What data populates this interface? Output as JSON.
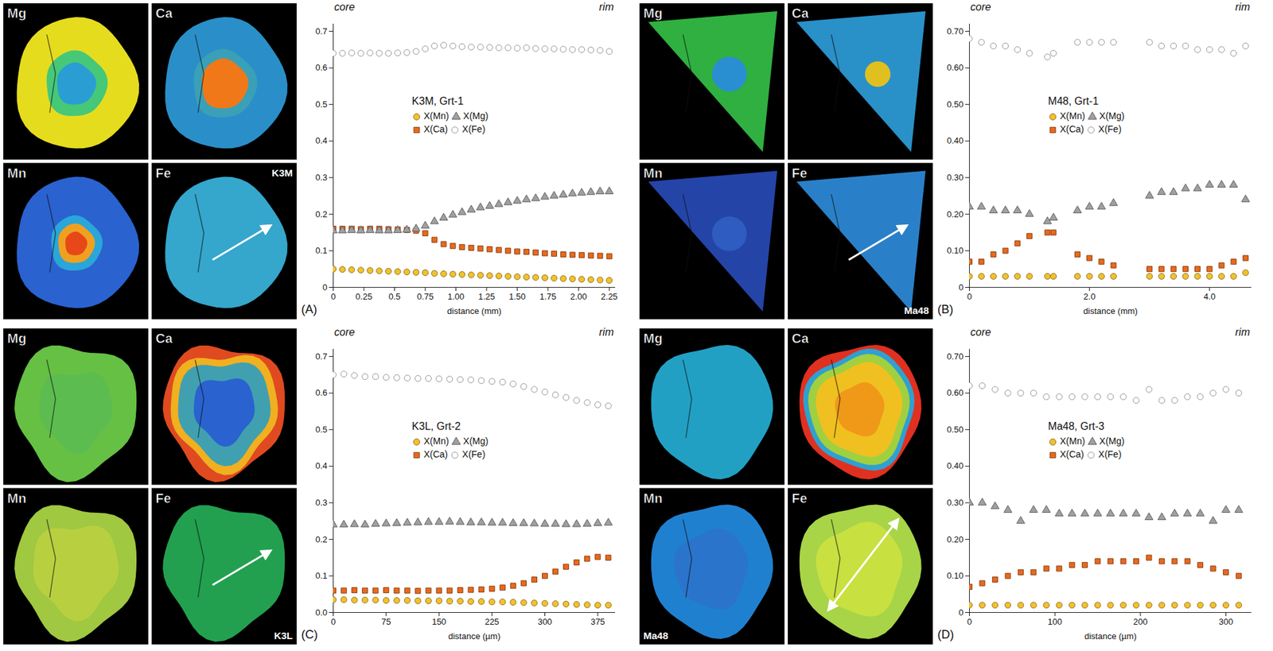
{
  "chart_data": [
    {
      "type": "scatter",
      "panel": "(A)",
      "title": "K3M, Grt-1",
      "annotations": [
        "core",
        "rim"
      ],
      "map_labels": [
        "Mg",
        "Ca",
        "Mn",
        "Fe"
      ],
      "sample_label": "K3M",
      "xlabel": "distance (mm)",
      "legend": "center",
      "x": [
        0,
        0.075,
        0.15,
        0.225,
        0.3,
        0.375,
        0.45,
        0.525,
        0.6,
        0.675,
        0.75,
        0.825,
        0.9,
        0.975,
        1.05,
        1.125,
        1.2,
        1.275,
        1.35,
        1.425,
        1.5,
        1.575,
        1.65,
        1.725,
        1.8,
        1.875,
        1.95,
        2.025,
        2.1,
        2.175,
        2.25
      ],
      "xlim": [
        0,
        2.3
      ],
      "xticks": [
        0,
        0.25,
        0.5,
        0.75,
        {
          "value": 1,
          "label": "1.00"
        },
        1.25,
        {
          "value": 1.5,
          "label": "1.50"
        },
        1.75,
        {
          "value": 2,
          "label": "2.00"
        },
        2.25
      ],
      "ylim": [
        0,
        0.72
      ],
      "yticks": [
        0,
        0.1,
        0.2,
        0.3,
        0.4,
        0.5,
        0.6,
        0.7
      ],
      "series": [
        {
          "name": "X(Mn)",
          "color": "#f2c12e",
          "marker": "circle",
          "values": [
            0.05,
            0.049,
            0.048,
            0.047,
            0.046,
            0.045,
            0.044,
            0.043,
            0.042,
            0.041,
            0.04,
            0.038,
            0.037,
            0.036,
            0.035,
            0.034,
            0.033,
            0.032,
            0.031,
            0.03,
            0.029,
            0.028,
            0.027,
            0.026,
            0.025,
            0.024,
            0.023,
            0.022,
            0.021,
            0.02,
            0.019
          ]
        },
        {
          "name": "X(Mg)",
          "color": "#a0a0a0",
          "marker": "triangle",
          "values": [
            0.155,
            0.155,
            0.156,
            0.155,
            0.156,
            0.155,
            0.155,
            0.156,
            0.157,
            0.16,
            0.168,
            0.18,
            0.19,
            0.198,
            0.205,
            0.212,
            0.218,
            0.222,
            0.227,
            0.232,
            0.236,
            0.24,
            0.243,
            0.247,
            0.25,
            0.253,
            0.256,
            0.258,
            0.26,
            0.262,
            0.262
          ]
        },
        {
          "name": "X(Ca)",
          "color": "#e8691c",
          "marker": "square",
          "values": [
            0.16,
            0.16,
            0.16,
            0.159,
            0.16,
            0.16,
            0.159,
            0.158,
            0.157,
            0.155,
            0.148,
            0.13,
            0.118,
            0.113,
            0.11,
            0.108,
            0.106,
            0.104,
            0.102,
            0.1,
            0.098,
            0.097,
            0.095,
            0.093,
            0.092,
            0.09,
            0.089,
            0.088,
            0.087,
            0.086,
            0.085
          ]
        },
        {
          "name": "X(Fe)",
          "color": "#ffffff",
          "marker": "circle",
          "values": [
            0.64,
            0.64,
            0.641,
            0.64,
            0.641,
            0.64,
            0.64,
            0.641,
            0.642,
            0.645,
            0.652,
            0.66,
            0.662,
            0.66,
            0.658,
            0.657,
            0.657,
            0.656,
            0.655,
            0.655,
            0.654,
            0.655,
            0.653,
            0.652,
            0.652,
            0.651,
            0.65,
            0.65,
            0.649,
            0.648,
            0.645
          ]
        }
      ]
    },
    {
      "type": "scatter",
      "panel": "(B)",
      "title": "M48, Grt-1",
      "annotations": [
        "core",
        "rim"
      ],
      "map_labels": [
        "Mg",
        "Ca",
        "Mn",
        "Fe"
      ],
      "sample_label": "Ma48",
      "xlabel": "distance (mm)",
      "legend": "center",
      "x": [
        0,
        0.2,
        0.4,
        0.6,
        0.8,
        1.0,
        1.3,
        1.4,
        1.8,
        2.0,
        2.2,
        2.4,
        3.0,
        3.2,
        3.4,
        3.6,
        3.8,
        4.0,
        4.2,
        4.4,
        4.6
      ],
      "xlim": [
        0,
        4.7
      ],
      "xticks": [
        0,
        {
          "value": 2,
          "label": "2.0"
        },
        {
          "value": 4,
          "label": "4.0"
        }
      ],
      "ylim": [
        0,
        0.72
      ],
      "yticks": [
        0,
        {
          "value": 0.1,
          "label": "0.10"
        },
        {
          "value": 0.2,
          "label": "0.20"
        },
        {
          "value": 0.3,
          "label": "0.30"
        },
        {
          "value": 0.4,
          "label": "0.40"
        },
        {
          "value": 0.5,
          "label": "0.50"
        },
        {
          "value": 0.6,
          "label": "0.60"
        },
        {
          "value": 0.7,
          "label": "0.70"
        }
      ],
      "series": [
        {
          "name": "X(Mn)",
          "color": "#f2c12e",
          "marker": "circle",
          "values": [
            0.03,
            0.03,
            0.03,
            0.03,
            0.03,
            0.03,
            0.03,
            0.03,
            0.03,
            0.03,
            0.03,
            0.03,
            0.03,
            0.03,
            0.03,
            0.03,
            0.03,
            0.03,
            0.03,
            0.03,
            0.04
          ]
        },
        {
          "name": "X(Mg)",
          "color": "#a0a0a0",
          "marker": "triangle",
          "values": [
            0.22,
            0.22,
            0.21,
            0.21,
            0.21,
            0.2,
            0.18,
            0.19,
            0.21,
            0.22,
            0.22,
            0.23,
            0.25,
            0.26,
            0.26,
            0.27,
            0.27,
            0.28,
            0.28,
            0.28,
            0.24
          ]
        },
        {
          "name": "X(Ca)",
          "color": "#e8691c",
          "marker": "square",
          "values": [
            0.07,
            0.07,
            0.09,
            0.1,
            0.12,
            0.14,
            0.15,
            0.15,
            0.09,
            0.08,
            0.07,
            0.06,
            0.05,
            0.05,
            0.05,
            0.05,
            0.05,
            0.05,
            0.06,
            0.07,
            0.08
          ]
        },
        {
          "name": "X(Fe)",
          "color": "#ffffff",
          "marker": "circle",
          "values": [
            0.68,
            0.67,
            0.66,
            0.66,
            0.65,
            0.64,
            0.63,
            0.64,
            0.67,
            0.67,
            0.67,
            0.67,
            0.67,
            0.66,
            0.66,
            0.66,
            0.65,
            0.65,
            0.65,
            0.64,
            0.66
          ]
        }
      ]
    },
    {
      "type": "scatter",
      "panel": "(C)",
      "title": "K3L, Grt-2",
      "annotations": [
        "core",
        "rim"
      ],
      "map_labels": [
        "Mg",
        "Ca",
        "Mn",
        "Fe"
      ],
      "sample_label": "K3L",
      "xlabel": "distance (µm)",
      "legend": "center",
      "x": [
        0,
        15,
        30,
        45,
        60,
        75,
        90,
        105,
        120,
        135,
        150,
        165,
        180,
        195,
        210,
        225,
        240,
        255,
        270,
        285,
        300,
        315,
        330,
        345,
        360,
        375,
        390
      ],
      "xlim": [
        0,
        400
      ],
      "xticks": [
        0,
        75,
        150,
        225,
        300,
        375
      ],
      "ylim": [
        0,
        0.72
      ],
      "yticks": [
        {
          "value": 0,
          "label": "0.0"
        },
        0.1,
        0.2,
        0.3,
        0.4,
        0.5,
        0.6,
        0.7
      ],
      "series": [
        {
          "name": "X(Mn)",
          "color": "#f2c12e",
          "marker": "circle",
          "values": [
            0.035,
            0.035,
            0.034,
            0.034,
            0.034,
            0.033,
            0.033,
            0.033,
            0.032,
            0.032,
            0.032,
            0.031,
            0.031,
            0.03,
            0.03,
            0.029,
            0.029,
            0.028,
            0.027,
            0.026,
            0.025,
            0.024,
            0.023,
            0.022,
            0.021,
            0.02,
            0.02
          ]
        },
        {
          "name": "X(Mg)",
          "color": "#a0a0a0",
          "marker": "triangle",
          "values": [
            0.24,
            0.24,
            0.241,
            0.24,
            0.242,
            0.243,
            0.244,
            0.245,
            0.246,
            0.247,
            0.247,
            0.248,
            0.247,
            0.246,
            0.246,
            0.245,
            0.245,
            0.244,
            0.244,
            0.243,
            0.242,
            0.242,
            0.241,
            0.241,
            0.242,
            0.244,
            0.245
          ]
        },
        {
          "name": "X(Ca)",
          "color": "#e8691c",
          "marker": "square",
          "values": [
            0.06,
            0.06,
            0.061,
            0.06,
            0.06,
            0.061,
            0.06,
            0.06,
            0.059,
            0.06,
            0.06,
            0.06,
            0.061,
            0.062,
            0.063,
            0.065,
            0.068,
            0.073,
            0.08,
            0.09,
            0.1,
            0.112,
            0.125,
            0.137,
            0.147,
            0.152,
            0.15
          ]
        },
        {
          "name": "X(Fe)",
          "color": "#ffffff",
          "marker": "circle",
          "values": [
            0.65,
            0.652,
            0.648,
            0.645,
            0.645,
            0.643,
            0.642,
            0.641,
            0.64,
            0.64,
            0.639,
            0.638,
            0.637,
            0.636,
            0.634,
            0.632,
            0.63,
            0.625,
            0.618,
            0.61,
            0.603,
            0.595,
            0.588,
            0.58,
            0.574,
            0.568,
            0.565
          ]
        }
      ]
    },
    {
      "type": "scatter",
      "panel": "(D)",
      "title": "Ma48, Grt-3",
      "annotations": [
        "core",
        "rim"
      ],
      "map_labels": [
        "Mg",
        "Ca",
        "Mn",
        "Fe"
      ],
      "sample_label": "Ma48",
      "xlabel": "distance (µm)",
      "legend": "center",
      "x": [
        0,
        15,
        30,
        45,
        60,
        75,
        90,
        105,
        120,
        135,
        150,
        165,
        180,
        195,
        210,
        225,
        240,
        255,
        270,
        285,
        300,
        315
      ],
      "xlim": [
        0,
        330
      ],
      "xticks": [
        0,
        100,
        200,
        300
      ],
      "ylim": [
        0,
        0.72
      ],
      "yticks": [
        0,
        {
          "value": 0.1,
          "label": "0.10"
        },
        {
          "value": 0.2,
          "label": "0.20"
        },
        {
          "value": 0.3,
          "label": "0.30"
        },
        {
          "value": 0.4,
          "label": "0.40"
        },
        {
          "value": 0.5,
          "label": "0.50"
        },
        {
          "value": 0.6,
          "label": "0.60"
        },
        {
          "value": 0.7,
          "label": "0.70"
        }
      ],
      "series": [
        {
          "name": "X(Mn)",
          "color": "#f2c12e",
          "marker": "circle",
          "values": [
            0.02,
            0.02,
            0.02,
            0.02,
            0.02,
            0.02,
            0.02,
            0.02,
            0.02,
            0.02,
            0.02,
            0.02,
            0.02,
            0.02,
            0.02,
            0.02,
            0.02,
            0.02,
            0.02,
            0.02,
            0.02,
            0.02
          ]
        },
        {
          "name": "X(Mg)",
          "color": "#a0a0a0",
          "marker": "triangle",
          "values": [
            0.3,
            0.3,
            0.29,
            0.28,
            0.25,
            0.28,
            0.28,
            0.27,
            0.27,
            0.27,
            0.27,
            0.27,
            0.27,
            0.27,
            0.26,
            0.26,
            0.27,
            0.27,
            0.27,
            0.25,
            0.28,
            0.28
          ]
        },
        {
          "name": "X(Ca)",
          "color": "#e8691c",
          "marker": "square",
          "values": [
            0.07,
            0.08,
            0.09,
            0.1,
            0.11,
            0.11,
            0.12,
            0.12,
            0.13,
            0.13,
            0.14,
            0.14,
            0.14,
            0.14,
            0.15,
            0.14,
            0.14,
            0.14,
            0.13,
            0.12,
            0.11,
            0.1
          ]
        },
        {
          "name": "X(Fe)",
          "color": "#ffffff",
          "marker": "circle",
          "values": [
            0.62,
            0.62,
            0.61,
            0.6,
            0.6,
            0.6,
            0.59,
            0.59,
            0.59,
            0.59,
            0.59,
            0.59,
            0.59,
            0.58,
            0.61,
            0.58,
            0.58,
            0.59,
            0.59,
            0.6,
            0.61,
            0.6
          ]
        }
      ]
    }
  ]
}
